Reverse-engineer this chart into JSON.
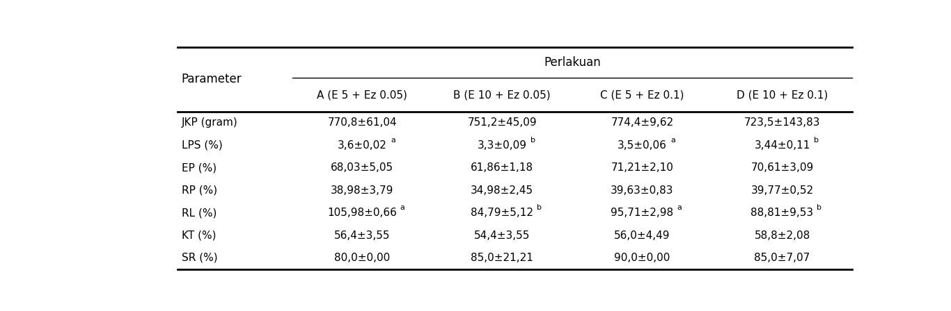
{
  "col_header_main": "Perlakuan",
  "col_header_row": "Parameter",
  "columns": [
    "A (E 5 + Ez 0.05)",
    "B (E 10 + Ez 0.05)",
    "C (E 5 + Ez 0.1)",
    "D (E 10 + Ez 0.1)"
  ],
  "rows": [
    {
      "param": "JKP (gram)",
      "values": [
        "770,8±61,04",
        "751,2±45,09",
        "774,4±9,62",
        "723,5±143,83"
      ],
      "superscripts": [
        "",
        "",
        "",
        ""
      ]
    },
    {
      "param": "LPS (%)",
      "values": [
        "3,6±0,02",
        "3,3±0,09",
        "3,5±0,06",
        "3,44±0,11"
      ],
      "superscripts": [
        "a",
        "b",
        "a",
        "b"
      ]
    },
    {
      "param": "EP (%)",
      "values": [
        "68,03±5,05",
        "61,86±1,18",
        "71,21±2,10",
        "70,61±3,09"
      ],
      "superscripts": [
        "",
        "",
        "",
        ""
      ]
    },
    {
      "param": "RP (%)",
      "values": [
        "38,98±3,79",
        "34,98±2,45",
        "39,63±0,83",
        "39,77±0,52"
      ],
      "superscripts": [
        "",
        "",
        "",
        ""
      ]
    },
    {
      "param": "RL (%)",
      "values": [
        "105,98±0,66",
        "84,79±5,12",
        "95,71±2,98",
        "88,81±9,53"
      ],
      "superscripts": [
        "a",
        "b",
        "a",
        "b"
      ]
    },
    {
      "param": "KT (%)",
      "values": [
        "56,4±3,55",
        "54,4±3,55",
        "56,0±4,49",
        "58,8±2,08"
      ],
      "superscripts": [
        "",
        "",
        "",
        ""
      ]
    },
    {
      "param": "SR (%)",
      "values": [
        "80,0±0,00",
        "85,0±21,21",
        "90,0±0,00",
        "85,0±7,07"
      ],
      "superscripts": [
        "",
        "",
        "",
        ""
      ]
    }
  ],
  "bg_color": "#ffffff",
  "text_color": "#000000",
  "font_size": 11,
  "header_font_size": 12,
  "sub_font_size": 11
}
